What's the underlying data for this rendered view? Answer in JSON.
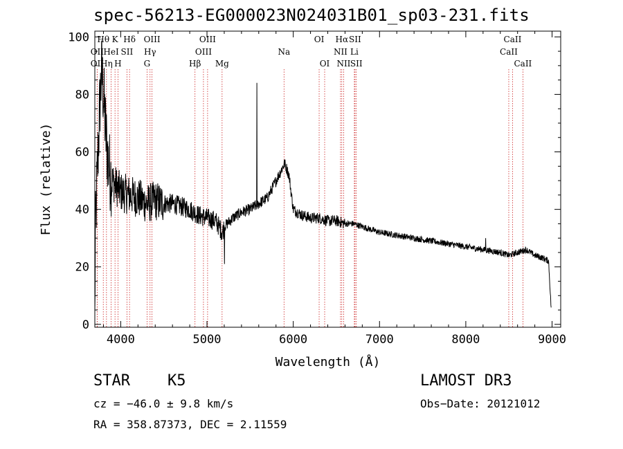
{
  "header": {
    "title": "spec-56213-EG000023N024031B01_sp03-231.fits"
  },
  "chart_data": {
    "type": "line",
    "title": "spec-56213-EG000023N024031B01_sp03-231.fits",
    "xlabel": "Wavelength (Å)",
    "ylabel": "Flux (relative)",
    "xlim": [
      3700,
      9100
    ],
    "ylim": [
      -1,
      102
    ],
    "x_ticks": [
      4000,
      5000,
      6000,
      7000,
      8000,
      9000
    ],
    "y_ticks": [
      0,
      20,
      40,
      60,
      80,
      100
    ],
    "grid": false,
    "spectrum_anchors": [
      [
        3700,
        0
      ],
      [
        3705,
        28
      ],
      [
        3720,
        45
      ],
      [
        3740,
        62
      ],
      [
        3760,
        78
      ],
      [
        3780,
        88
      ],
      [
        3800,
        80
      ],
      [
        3830,
        65
      ],
      [
        3860,
        55
      ],
      [
        3900,
        50
      ],
      [
        3950,
        48
      ],
      [
        4000,
        46
      ],
      [
        4100,
        45
      ],
      [
        4200,
        44
      ],
      [
        4300,
        42
      ],
      [
        4400,
        43
      ],
      [
        4500,
        42
      ],
      [
        4600,
        42
      ],
      [
        4700,
        41
      ],
      [
        4800,
        40
      ],
      [
        4900,
        38
      ],
      [
        5000,
        37
      ],
      [
        5100,
        36
      ],
      [
        5180,
        32
      ],
      [
        5200,
        34
      ],
      [
        5300,
        37
      ],
      [
        5400,
        39
      ],
      [
        5500,
        40
      ],
      [
        5600,
        42
      ],
      [
        5700,
        44
      ],
      [
        5800,
        50
      ],
      [
        5900,
        56
      ],
      [
        5950,
        52
      ],
      [
        6000,
        40
      ],
      [
        6100,
        38
      ],
      [
        6200,
        37
      ],
      [
        6300,
        37
      ],
      [
        6400,
        36
      ],
      [
        6500,
        36
      ],
      [
        6600,
        35
      ],
      [
        6700,
        35
      ],
      [
        6800,
        34
      ],
      [
        6900,
        33
      ],
      [
        7000,
        32
      ],
      [
        7200,
        31
      ],
      [
        7400,
        30
      ],
      [
        7600,
        29
      ],
      [
        7800,
        28
      ],
      [
        8000,
        27
      ],
      [
        8200,
        26
      ],
      [
        8400,
        25
      ],
      [
        8500,
        24
      ],
      [
        8600,
        25
      ],
      [
        8700,
        26
      ],
      [
        8800,
        24
      ],
      [
        8900,
        23
      ],
      [
        8960,
        22
      ],
      [
        8990,
        5
      ]
    ],
    "spikes": [
      [
        5578,
        84
      ],
      [
        5202,
        21
      ],
      [
        8230,
        30
      ]
    ],
    "line_markers": [
      {
        "label": "OII",
        "x": 3727,
        "row": 2
      },
      {
        "label": "Hθ",
        "x": 3798,
        "row": 1
      },
      {
        "label": "OII",
        "x": 3727,
        "row": 3
      },
      {
        "label": "Hη",
        "x": 3835,
        "row": 3
      },
      {
        "label": "HeI",
        "x": 3889,
        "row": 2
      },
      {
        "label": "K",
        "x": 3934,
        "row": 1
      },
      {
        "label": "H",
        "x": 3968,
        "row": 3
      },
      {
        "label": "SII",
        "x": 4072,
        "row": 2
      },
      {
        "label": "Hδ",
        "x": 4102,
        "row": 1
      },
      {
        "label": "OIII",
        "x": 4363,
        "row": 1
      },
      {
        "label": "Hγ",
        "x": 4340,
        "row": 2
      },
      {
        "label": "G",
        "x": 4305,
        "row": 3
      },
      {
        "label": "Hβ",
        "x": 4861,
        "row": 3
      },
      {
        "label": "OIII",
        "x": 5007,
        "row": 1
      },
      {
        "label": "OIII",
        "x": 4959,
        "row": 2
      },
      {
        "label": "Mg",
        "x": 5175,
        "row": 3
      },
      {
        "label": "Na",
        "x": 5893,
        "row": 2
      },
      {
        "label": "OI",
        "x": 6300,
        "row": 1
      },
      {
        "label": "OI",
        "x": 6364,
        "row": 3
      },
      {
        "label": "Hα",
        "x": 6563,
        "row": 1
      },
      {
        "label": "SII",
        "x": 6716,
        "row": 1
      },
      {
        "label": "NII",
        "x": 6548,
        "row": 2
      },
      {
        "label": "Li",
        "x": 6708,
        "row": 2
      },
      {
        "label": "NII",
        "x": 6584,
        "row": 3
      },
      {
        "label": "SII",
        "x": 6731,
        "row": 3
      },
      {
        "label": "CaII",
        "x": 8542,
        "row": 1
      },
      {
        "label": "CaII",
        "x": 8498,
        "row": 2
      },
      {
        "label": "CaII",
        "x": 8662,
        "row": 3
      }
    ]
  },
  "info": {
    "class_label": "STAR",
    "subclass_label": "K5",
    "survey_label": "LAMOST DR3",
    "cz_text": "cz = −46.0 ± 9.8 km/s",
    "obs_date_text": "Obs−Date: 20121012",
    "coords_text": "RA = 358.87373, DEC =    2.11559"
  },
  "colors": {
    "spectrum": "#000000",
    "marker_line": "#cc2222",
    "axis": "#000000"
  }
}
